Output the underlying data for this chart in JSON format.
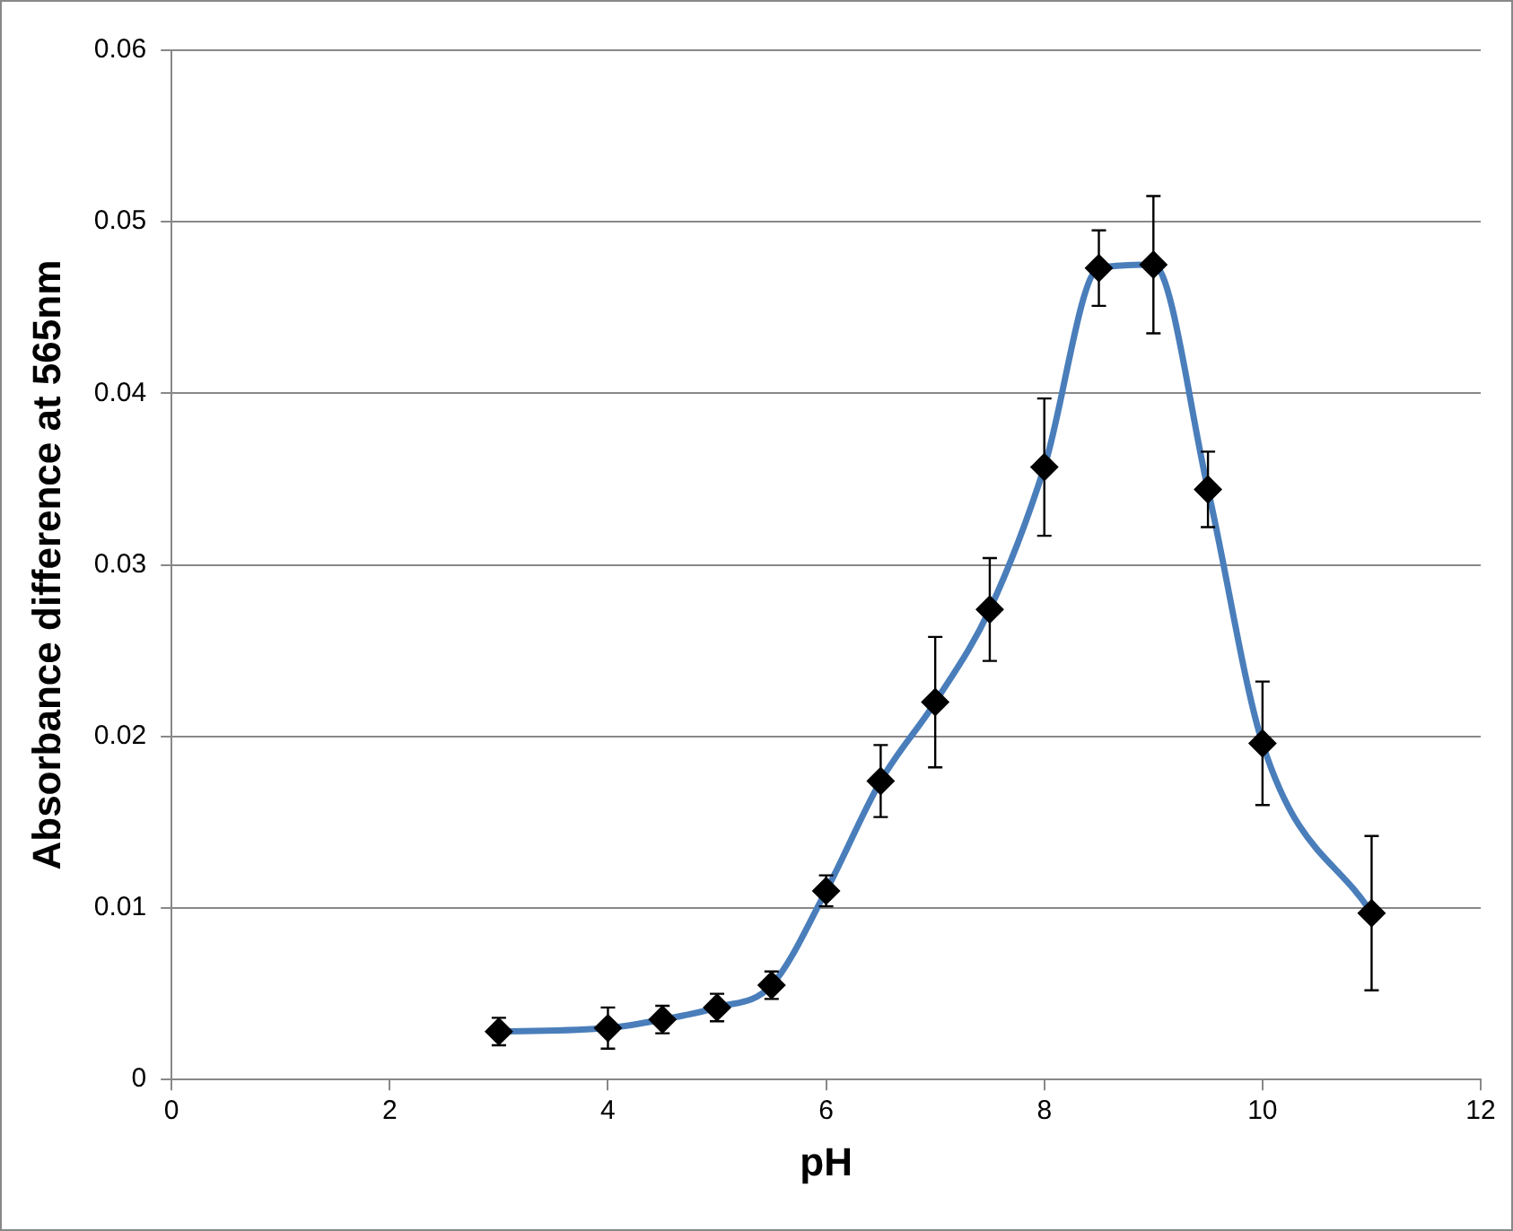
{
  "chart_data": {
    "type": "line",
    "xlabel": "pH",
    "ylabel": "Absorbance difference at 565nm",
    "x": [
      3,
      4,
      4.5,
      5,
      5.5,
      6,
      6.5,
      7,
      7.5,
      8,
      8.5,
      9,
      9.5,
      10,
      11
    ],
    "series": [
      {
        "color": "#4a7ebb",
        "values": [
          0.0028,
          0.003,
          0.0035,
          0.0042,
          0.0055,
          0.011,
          0.0174,
          0.022,
          0.0274,
          0.0357,
          0.0473,
          0.0475,
          0.0344,
          0.0196,
          0.0097
        ],
        "errors": [
          0.0008,
          0.0012,
          0.0008,
          0.0008,
          0.0008,
          0.0009,
          0.0021,
          0.0038,
          0.003,
          0.004,
          0.0022,
          0.004,
          0.0022,
          0.0036,
          0.0045
        ]
      }
    ],
    "xlim": [
      0,
      12
    ],
    "xticks": [
      0,
      2,
      4,
      6,
      8,
      10,
      12
    ],
    "ylim": [
      0,
      0.06
    ],
    "yticks": [
      0,
      0.01,
      0.02,
      0.03,
      0.04,
      0.05,
      0.06
    ],
    "grid": "y",
    "marker": "diamond",
    "line_style": "solid",
    "legend": false
  }
}
